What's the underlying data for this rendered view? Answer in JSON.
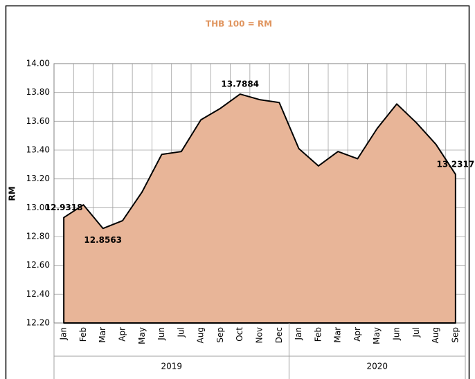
{
  "chart_data": {
    "type": "area",
    "title": "THB 100 = RM",
    "y_label": "RM",
    "categories": [
      "Jan",
      "Feb",
      "Mar",
      "Apr",
      "May",
      "Jun",
      "Jul",
      "Aug",
      "Sep",
      "Oct",
      "Nov",
      "Dec",
      "Jan",
      "Feb",
      "Mar",
      "Apr",
      "May",
      "Jun",
      "Jul",
      "Aug",
      "Sep"
    ],
    "year_groups": [
      {
        "label": "2019",
        "count": 12
      },
      {
        "label": "2020",
        "count": 9
      }
    ],
    "values": [
      12.9318,
      13.02,
      12.8563,
      12.91,
      13.11,
      13.37,
      13.39,
      13.61,
      13.69,
      13.7884,
      13.75,
      13.73,
      13.41,
      13.29,
      13.39,
      13.34,
      13.55,
      13.72,
      13.59,
      13.44,
      13.2317
    ],
    "value_labels": [
      "12.9318",
      null,
      "12.8563",
      null,
      null,
      null,
      null,
      null,
      null,
      "13.7884",
      null,
      null,
      null,
      null,
      null,
      null,
      null,
      null,
      null,
      null,
      "13.2317"
    ],
    "color": "#e8b598",
    "line_color": "#000000",
    "title_color": "#e0955f",
    "ylim": [
      12.2,
      14.0
    ],
    "yticks": [
      {
        "value": 12.2,
        "label": "12.20"
      },
      {
        "value": 12.4,
        "label": "12.40"
      },
      {
        "value": 12.6,
        "label": "12.60"
      },
      {
        "value": 12.8,
        "label": "12.80"
      },
      {
        "value": 13.0,
        "label": "13.00"
      },
      {
        "value": 13.2,
        "label": "13.20"
      },
      {
        "value": 13.4,
        "label": "13.40"
      },
      {
        "value": 13.6,
        "label": "13.60"
      },
      {
        "value": 13.8,
        "label": "13.80"
      },
      {
        "value": 14.0,
        "label": "14.00"
      }
    ],
    "grid": true
  }
}
